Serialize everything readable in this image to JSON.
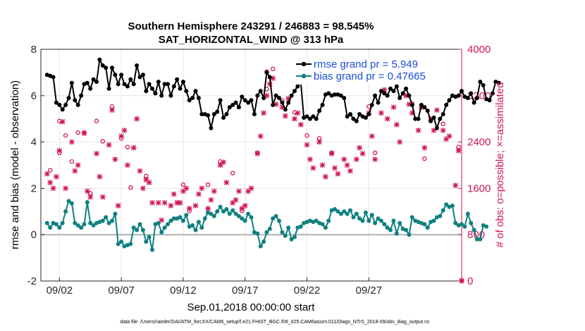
{
  "chart_data": {
    "type": "line",
    "title_line1": "Southern Hemisphere 243291 / 246883 = 98.545%",
    "title_line2": "SAT_HORIZONTAL_WIND @ 313 hPa",
    "xlabel": "Sep.01,2018 00:00:00 start",
    "ylabel_left": "rmse and bias (model - observation)",
    "ylabel_right": "# of obs: o=possible; ×=assimilated",
    "footer": "data file: /Users/raeder/DAI/ATM_forcXX/CAM6_setup/f.e21.FHIST_BGC.f09_025.CAM6assim.011/Diags_NTrS_2018-09/obs_diag_output.nc",
    "x_range_days": [
      0.5,
      34.5
    ],
    "x_ticks": [
      {
        "day": 2,
        "label": "09/02"
      },
      {
        "day": 7,
        "label": "09/07"
      },
      {
        "day": 12,
        "label": "09/12"
      },
      {
        "day": 17,
        "label": "09/17"
      },
      {
        "day": 22,
        "label": "09/22"
      },
      {
        "day": 27,
        "label": "09/27"
      }
    ],
    "ylim_left": [
      -2,
      8
    ],
    "y_ticks_left": [
      "-2",
      "0",
      "2",
      "4",
      "6",
      "8"
    ],
    "ylim_right": [
      0,
      4000
    ],
    "y_ticks_right": [
      "0",
      "800",
      "1600",
      "2400",
      "3200",
      "4000"
    ],
    "zero_line": 0,
    "colors": {
      "rmse": "#000000",
      "bias": "#0f8080",
      "obs": "#d0135a",
      "legend_text": "#1a4fd6"
    },
    "rmse": {
      "legend": "rmse grand pr = 5.949",
      "start_day": 1.0,
      "step_days": 0.25,
      "values": [
        6.9,
        6.85,
        6.8,
        5.7,
        5.6,
        5.4,
        5.6,
        5.9,
        6.55,
        5.8,
        5.6,
        6.0,
        6.5,
        6.55,
        6.3,
        6.7,
        6.6,
        7.55,
        7.3,
        7.2,
        6.3,
        7.2,
        6.9,
        6.5,
        6.9,
        6.5,
        6.4,
        6.7,
        6.5,
        7.3,
        6.8,
        6.9,
        6.2,
        6.5,
        6.3,
        6.1,
        6.6,
        6.0,
        6.5,
        6.5,
        6.0,
        6.4,
        6.7,
        6.3,
        6.6,
        6.2,
        5.8,
        5.9,
        6.2,
        5.9,
        5.2,
        5.2,
        5.15,
        4.6,
        5.2,
        5.3,
        5.8,
        5.05,
        5.2,
        5.5,
        5.6,
        5.7,
        5.5,
        5.95,
        5.8,
        5.7,
        5.8,
        5.2,
        6.0,
        6.2,
        5.9,
        7.0,
        6.8,
        5.6,
        6.0,
        5.9,
        5.7,
        5.4,
        5.7,
        6.0,
        6.2,
        6.4,
        6.6,
        5.05,
        5.1,
        5.0,
        5.1,
        5.0,
        5.35,
        5.6,
        6.05,
        6.1,
        6.0,
        6.05,
        6.05,
        6.0,
        5.9,
        5.1,
        5.2,
        5.0,
        4.9,
        5.2,
        5.1,
        5.05,
        5.2,
        5.6,
        6.0,
        5.7,
        6.2,
        6.1,
        6.0,
        6.3,
        6.2,
        6.4,
        5.9,
        6.1,
        6.3,
        6.0,
        5.6,
        5.0,
        5.0,
        5.6,
        5.5,
        5.35,
        4.9,
        5.05,
        4.6,
        5.0,
        5.2,
        5.6,
        5.8,
        6.0,
        5.95,
        6.0,
        6.2,
        5.95,
        5.9,
        6.1,
        5.7,
        5.9,
        6.6,
        6.45,
        5.85,
        5.8,
        6.1,
        6.6,
        6.55
      ]
    },
    "bias": {
      "legend": "bias grand pr = 0.47665",
      "start_day": 1.0,
      "step_days": 0.25,
      "values": [
        0.5,
        0.3,
        0.5,
        0.45,
        0.3,
        0.5,
        1.0,
        1.45,
        1.35,
        0.5,
        0.4,
        0.3,
        0.45,
        1.4,
        0.5,
        0.4,
        0.5,
        0.55,
        0.6,
        0.75,
        0.5,
        0.6,
        0.9,
        -0.4,
        -0.3,
        -0.5,
        -0.45,
        -0.4,
        0.3,
        0.2,
        0.45,
        0.2,
        -0.3,
        -0.1,
        -0.65,
        0.45,
        0.5,
        0.1,
        0.3,
        0.45,
        0.6,
        0.7,
        0.7,
        0.75,
        0.6,
        0.85,
        0.35,
        0.4,
        0.2,
        0.55,
        0.3,
        0.7,
        0.95,
        0.9,
        0.8,
        1.0,
        1.2,
        1.0,
        1.1,
        0.9,
        1.05,
        0.9,
        0.8,
        0.7,
        0.6,
        0.9,
        0.75,
        0.1,
        0.05,
        -0.5,
        -0.3,
        0.1,
        0.25,
        0.7,
        0.8,
        0.6,
        0.1,
        -0.05,
        0.3,
        -0.2,
        -0.1,
        0.3,
        0.35,
        0.5,
        0.55,
        0.6,
        0.55,
        0.6,
        0.5,
        0.45,
        0.3,
        0.6,
        1.05,
        1.1,
        1.0,
        0.9,
        1.0,
        0.9,
        1.05,
        0.75,
        0.9,
        0.7,
        0.6,
        0.95,
        0.6,
        0.85,
        0.5,
        0.7,
        0.6,
        0.45,
        0.3,
        0.2,
        0.6,
        0.05,
        0.5,
        0.25,
        0.2,
        0.0,
        0.75,
        0.6,
        0.55,
        0.5,
        0.45,
        0.3,
        0.55,
        0.6,
        0.75,
        0.8,
        1.05,
        1.3,
        1.2,
        1.25,
        0.5,
        0.4,
        0.45,
        0.35,
        0.9,
        0.5,
        0.2,
        -0.2,
        -0.2,
        0.4,
        0.35
      ]
    },
    "obs_possible": [
      {
        "day": 1.25,
        "v": 1900
      },
      {
        "day": 2.0,
        "v": 2750
      },
      {
        "day": 2.0,
        "v": 2200
      },
      {
        "day": 2.5,
        "v": 2500
      },
      {
        "day": 3.0,
        "v": 2050
      },
      {
        "day": 3.5,
        "v": 2550
      },
      {
        "day": 4.0,
        "v": 2550
      },
      {
        "day": 4.5,
        "v": 1500
      },
      {
        "day": 5.0,
        "v": 2750
      },
      {
        "day": 5.5,
        "v": 2400
      },
      {
        "day": 6.25,
        "v": 3000
      },
      {
        "day": 7.0,
        "v": 2450
      },
      {
        "day": 7.5,
        "v": 2300
      },
      {
        "day": 7.75,
        "v": 1600
      },
      {
        "day": 9.0,
        "v": 1800
      },
      {
        "day": 12.0,
        "v": 1650
      },
      {
        "day": 12.5,
        "v": 1200
      },
      {
        "day": 14.0,
        "v": 1650
      },
      {
        "day": 15.0,
        "v": 2050
      },
      {
        "day": 16.0,
        "v": 1850
      },
      {
        "day": 16.75,
        "v": 1200
      },
      {
        "day": 18.0,
        "v": 2200
      },
      {
        "day": 18.75,
        "v": 3600
      },
      {
        "day": 18.75,
        "v": 3300
      },
      {
        "day": 19.25,
        "v": 3650
      },
      {
        "day": 20.0,
        "v": 3100
      },
      {
        "day": 21.0,
        "v": 2900
      },
      {
        "day": 22.0,
        "v": 2500
      },
      {
        "day": 23.0,
        "v": 2450
      },
      {
        "day": 24.0,
        "v": 2200
      },
      {
        "day": 27.0,
        "v": 3000
      },
      {
        "day": 27.5,
        "v": 2200
      },
      {
        "day": 30.5,
        "v": 3050
      },
      {
        "day": 31.5,
        "v": 2100
      },
      {
        "day": 33.0,
        "v": 2700
      },
      {
        "day": 34.25,
        "v": 2300
      },
      {
        "day": 34.5,
        "v": 0
      }
    ],
    "obs_assimilated": [
      {
        "day": 1.0,
        "v": 1850
      },
      {
        "day": 1.25,
        "v": 1700
      },
      {
        "day": 1.5,
        "v": 1600
      },
      {
        "day": 1.75,
        "v": 1800
      },
      {
        "day": 2.0,
        "v": 2250
      },
      {
        "day": 2.25,
        "v": 2750
      },
      {
        "day": 2.5,
        "v": 1600
      },
      {
        "day": 3.0,
        "v": 2400
      },
      {
        "day": 3.25,
        "v": 1900
      },
      {
        "day": 3.5,
        "v": 2000
      },
      {
        "day": 4.0,
        "v": 2550
      },
      {
        "day": 4.25,
        "v": 1550
      },
      {
        "day": 4.5,
        "v": 1450
      },
      {
        "day": 5.0,
        "v": 2200
      },
      {
        "day": 5.25,
        "v": 1800
      },
      {
        "day": 5.5,
        "v": 1450
      },
      {
        "day": 6.0,
        "v": 2350
      },
      {
        "day": 6.25,
        "v": 2950
      },
      {
        "day": 6.5,
        "v": 2100
      },
      {
        "day": 6.75,
        "v": 1300
      },
      {
        "day": 7.0,
        "v": 2500
      },
      {
        "day": 7.25,
        "v": 2600
      },
      {
        "day": 7.5,
        "v": 2000
      },
      {
        "day": 8.0,
        "v": 2300
      },
      {
        "day": 8.25,
        "v": 2800
      },
      {
        "day": 8.5,
        "v": 1900
      },
      {
        "day": 8.75,
        "v": 1600
      },
      {
        "day": 9.0,
        "v": 1750
      },
      {
        "day": 9.25,
        "v": 1700
      },
      {
        "day": 9.5,
        "v": 1350
      },
      {
        "day": 10.0,
        "v": 1350
      },
      {
        "day": 10.25,
        "v": 1050
      },
      {
        "day": 10.5,
        "v": 1350
      },
      {
        "day": 11.0,
        "v": 1300
      },
      {
        "day": 11.25,
        "v": 1500
      },
      {
        "day": 11.5,
        "v": 1350
      },
      {
        "day": 11.75,
        "v": 1350
      },
      {
        "day": 12.0,
        "v": 1550
      },
      {
        "day": 12.25,
        "v": 1600
      },
      {
        "day": 12.5,
        "v": 1250
      },
      {
        "day": 13.0,
        "v": 1300
      },
      {
        "day": 13.25,
        "v": 1500
      },
      {
        "day": 13.5,
        "v": 1600
      },
      {
        "day": 14.0,
        "v": 1250
      },
      {
        "day": 14.25,
        "v": 1400
      },
      {
        "day": 14.5,
        "v": 1550
      },
      {
        "day": 15.0,
        "v": 2000
      },
      {
        "day": 15.25,
        "v": 2050
      },
      {
        "day": 15.5,
        "v": 1700
      },
      {
        "day": 16.0,
        "v": 1350
      },
      {
        "day": 16.25,
        "v": 1400
      },
      {
        "day": 16.5,
        "v": 1550
      },
      {
        "day": 16.75,
        "v": 1250
      },
      {
        "day": 17.0,
        "v": 1300
      },
      {
        "day": 17.25,
        "v": 1550
      },
      {
        "day": 17.5,
        "v": 1600
      },
      {
        "day": 18.0,
        "v": 2200
      },
      {
        "day": 18.25,
        "v": 2500
      },
      {
        "day": 18.5,
        "v": 2900
      },
      {
        "day": 18.75,
        "v": 3200
      },
      {
        "day": 19.0,
        "v": 3400
      },
      {
        "day": 19.25,
        "v": 3500
      },
      {
        "day": 19.5,
        "v": 3050
      },
      {
        "day": 20.0,
        "v": 3000
      },
      {
        "day": 20.25,
        "v": 2850
      },
      {
        "day": 20.5,
        "v": 3150
      },
      {
        "day": 21.0,
        "v": 2800
      },
      {
        "day": 21.25,
        "v": 2900
      },
      {
        "day": 21.5,
        "v": 2700
      },
      {
        "day": 22.0,
        "v": 2350
      },
      {
        "day": 22.25,
        "v": 2100
      },
      {
        "day": 22.5,
        "v": 1950
      },
      {
        "day": 23.0,
        "v": 2400
      },
      {
        "day": 23.25,
        "v": 2000
      },
      {
        "day": 23.5,
        "v": 1800
      },
      {
        "day": 24.0,
        "v": 2200
      },
      {
        "day": 24.25,
        "v": 1950
      },
      {
        "day": 24.5,
        "v": 1850
      },
      {
        "day": 25.0,
        "v": 2100
      },
      {
        "day": 25.25,
        "v": 2000
      },
      {
        "day": 25.5,
        "v": 1900
      },
      {
        "day": 26.0,
        "v": 2100
      },
      {
        "day": 26.25,
        "v": 2300
      },
      {
        "day": 26.5,
        "v": 2200
      },
      {
        "day": 27.0,
        "v": 2900
      },
      {
        "day": 27.25,
        "v": 2500
      },
      {
        "day": 27.5,
        "v": 2100
      },
      {
        "day": 28.0,
        "v": 2900
      },
      {
        "day": 28.25,
        "v": 3300
      },
      {
        "day": 28.5,
        "v": 2800
      },
      {
        "day": 29.0,
        "v": 3000
      },
      {
        "day": 29.25,
        "v": 2700
      },
      {
        "day": 29.5,
        "v": 2400
      },
      {
        "day": 30.0,
        "v": 3200
      },
      {
        "day": 30.25,
        "v": 3050
      },
      {
        "day": 30.5,
        "v": 2900
      },
      {
        "day": 31.0,
        "v": 2600
      },
      {
        "day": 31.25,
        "v": 3000
      },
      {
        "day": 31.5,
        "v": 2300
      },
      {
        "day": 32.0,
        "v": 2800
      },
      {
        "day": 32.25,
        "v": 2600
      },
      {
        "day": 32.5,
        "v": 2950
      },
      {
        "day": 33.0,
        "v": 2600
      },
      {
        "day": 33.25,
        "v": 2450
      },
      {
        "day": 33.5,
        "v": 2500
      },
      {
        "day": 34.0,
        "v": 1650
      },
      {
        "day": 34.25,
        "v": 2250
      },
      {
        "day": 34.5,
        "v": 0
      }
    ]
  }
}
